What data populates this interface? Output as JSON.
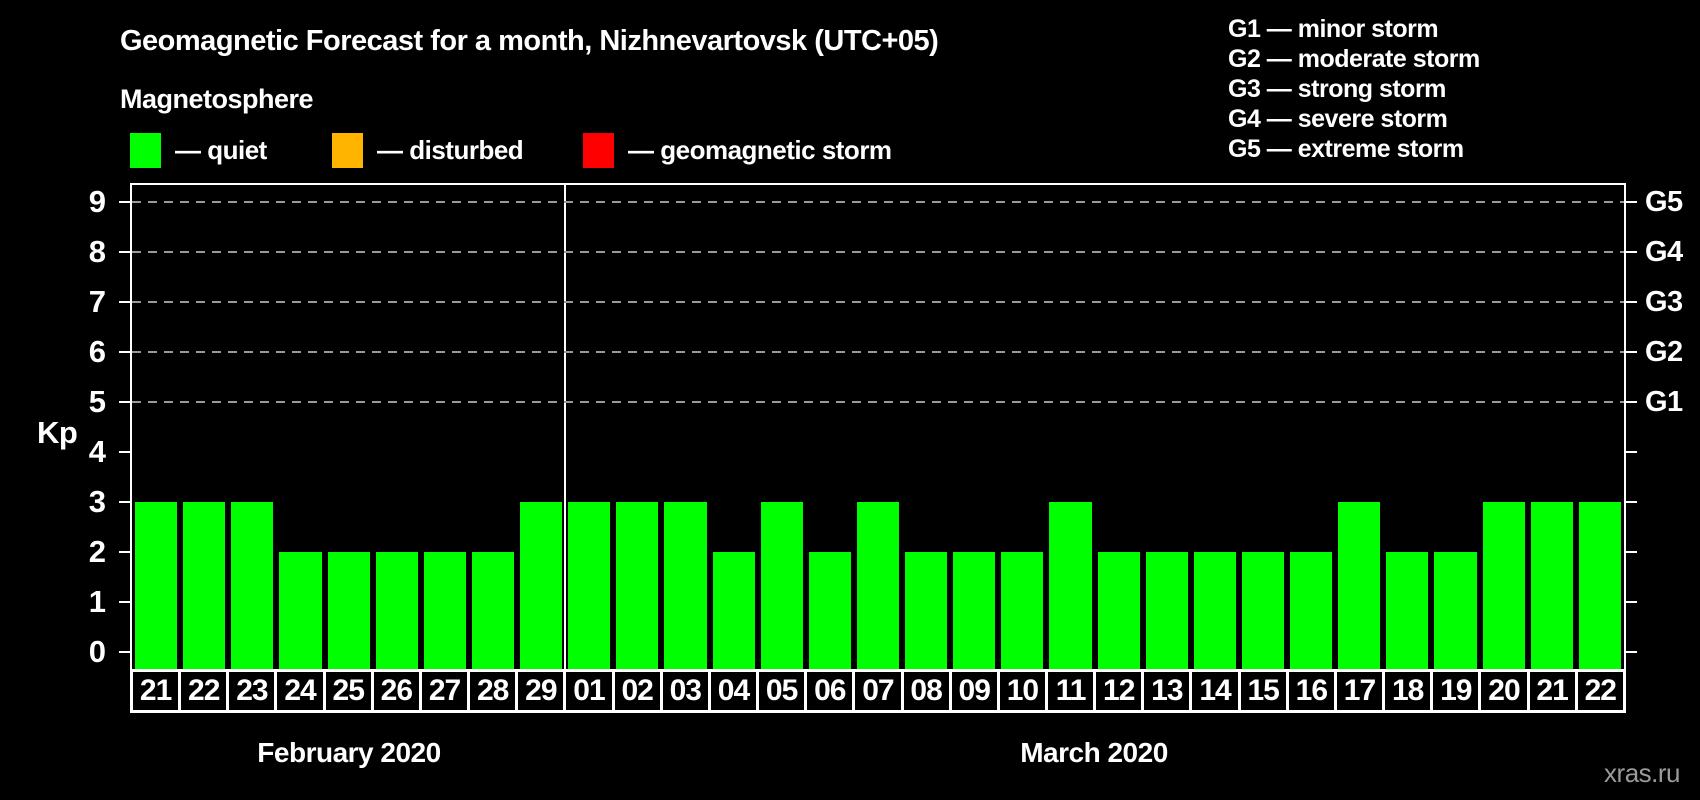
{
  "title": "Geomagnetic Forecast for a month, Nizhnevartovsk (UTC+05)",
  "subtitle": "Magnetosphere",
  "legend": {
    "items": [
      {
        "name": "quiet",
        "label": "— quiet",
        "color": "#00ff00"
      },
      {
        "name": "disturbed",
        "label": "— disturbed",
        "color": "#ffb400"
      },
      {
        "name": "geomagnetic-storm",
        "label": "— geomagnetic storm",
        "color": "#ff0000"
      }
    ]
  },
  "storm_scale": [
    {
      "code": "G1",
      "kp": 5,
      "label": "G1 — minor storm"
    },
    {
      "code": "G2",
      "kp": 6,
      "label": "G2 — moderate storm"
    },
    {
      "code": "G3",
      "kp": 7,
      "label": "G3 — strong storm"
    },
    {
      "code": "G4",
      "kp": 8,
      "label": "G4 — severe storm"
    },
    {
      "code": "G5",
      "kp": 9,
      "label": "G5 — extreme storm"
    }
  ],
  "watermark": "xras.ru",
  "chart_data": {
    "type": "bar",
    "title": "Geomagnetic Forecast for a month, Nizhnevartovsk (UTC+05)",
    "ylabel": "Kp",
    "ylim": [
      0,
      9
    ],
    "yticks": [
      0,
      1,
      2,
      3,
      4,
      5,
      6,
      7,
      8,
      9
    ],
    "grid": "dashed horizontal lines at Kp 5-9 (G1-G5 levels only)",
    "legend_position": "top",
    "bar_color": "#00ff00",
    "groups": [
      {
        "month": "February 2020",
        "days": [
          "21",
          "22",
          "23",
          "24",
          "25",
          "26",
          "27",
          "28",
          "29"
        ],
        "values": [
          3,
          3,
          3,
          2,
          2,
          2,
          2,
          2,
          3
        ]
      },
      {
        "month": "March 2020",
        "days": [
          "01",
          "02",
          "03",
          "04",
          "05",
          "06",
          "07",
          "08",
          "09",
          "10",
          "11",
          "12",
          "13",
          "14",
          "15",
          "16",
          "17",
          "18",
          "19",
          "20",
          "21",
          "22"
        ],
        "values": [
          3,
          3,
          3,
          2,
          3,
          2,
          3,
          2,
          2,
          2,
          3,
          2,
          2,
          2,
          2,
          2,
          3,
          2,
          2,
          3,
          3,
          3
        ]
      }
    ]
  }
}
